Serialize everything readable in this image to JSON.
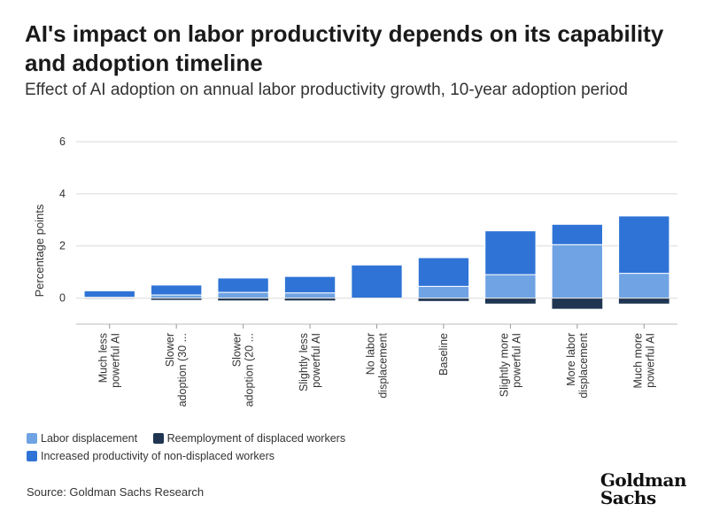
{
  "title": "AI's impact on labor productivity depends on its capability and adoption timeline",
  "subtitle": "Effect of AI adoption on annual labor productivity growth, 10-year adoption period",
  "source": "Source: Goldman Sachs Research",
  "logo": {
    "line1": "Goldman",
    "line2": "Sachs"
  },
  "chart_data": {
    "type": "bar",
    "stacked": true,
    "ylabel": "Percentage points",
    "ylim": [
      -1,
      6
    ],
    "yticks": [
      0,
      2,
      4,
      6
    ],
    "grid": true,
    "legend_position": "bottom-left",
    "categories": [
      [
        "Much less",
        "powerful AI"
      ],
      [
        "Slower",
        "adoption (30 ..."
      ],
      [
        "Slower",
        "adoption (20 ..."
      ],
      [
        "Slightly less",
        "powerful AI"
      ],
      [
        "No labor",
        "displacement"
      ],
      [
        "Baseline"
      ],
      [
        "Slightly more",
        "powerful AI"
      ],
      [
        "More labor",
        "displacement"
      ],
      [
        "Much more",
        "powerful AI"
      ]
    ],
    "series": [
      {
        "name": "Labor displacement",
        "color": "#6fa3e3",
        "values": [
          0.03,
          0.12,
          0.22,
          0.2,
          0.0,
          0.45,
          0.9,
          2.05,
          0.95
        ]
      },
      {
        "name": "Reemployment of displaced workers",
        "color": "#1f3552",
        "values": [
          -0.03,
          -0.08,
          -0.1,
          -0.1,
          0.0,
          -0.12,
          -0.22,
          -0.42,
          -0.22
        ]
      },
      {
        "name": "Increased productivity of non-displaced workers",
        "color": "#2f73d6",
        "values": [
          0.25,
          0.38,
          0.55,
          0.63,
          1.27,
          1.1,
          1.68,
          0.78,
          2.2
        ]
      }
    ]
  }
}
